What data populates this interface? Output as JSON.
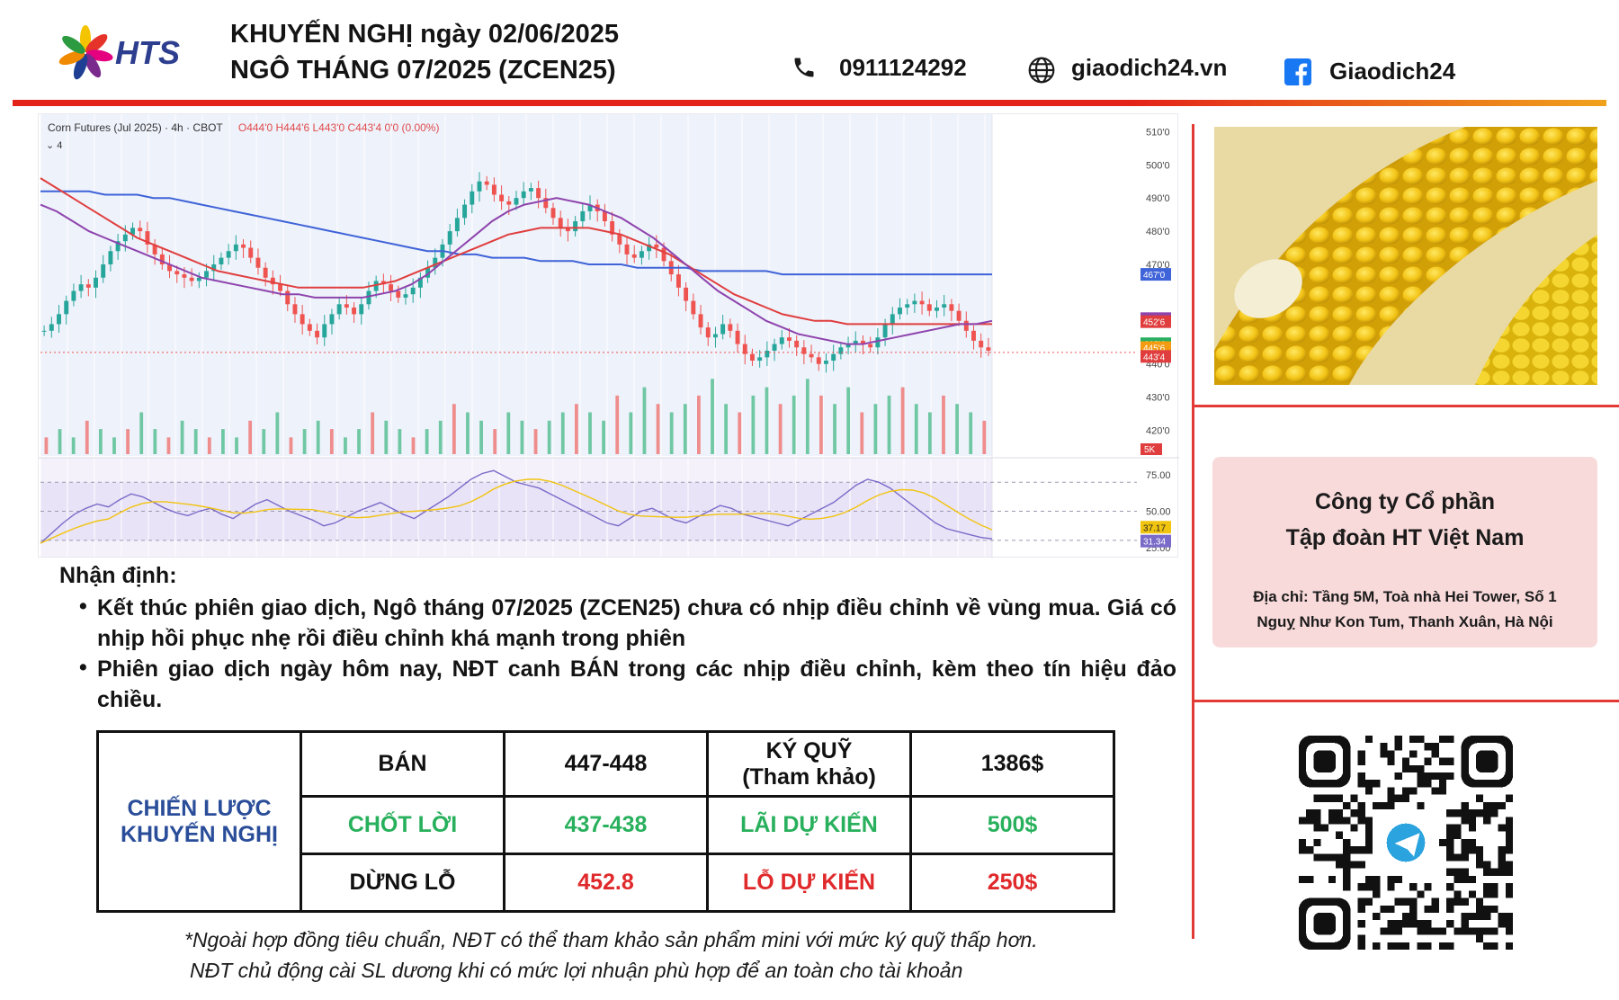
{
  "brand": {
    "name": "HTS"
  },
  "header": {
    "title_line1": "KHUYẾN NGHỊ ngày 02/06/2025",
    "title_line2": "NGÔ THÁNG 07/2025 (ZCEN25)",
    "phone": "0911124292",
    "website": "giaodich24.vn",
    "facebook": "Giaodich24"
  },
  "chart_data": {
    "type": "candlestick",
    "instrument": "Corn Futures (Jul 2025) · 4h · CBOT",
    "ohlc_label": "O444'0 H444'6 L443'0 C443'4 0'0 (0.00%)",
    "indicator_count": "4",
    "price_axis_ticks": [
      "510'0",
      "500'0",
      "490'0",
      "480'0",
      "470'0",
      "440'0",
      "430'0",
      "420'0"
    ],
    "price_labels": [
      {
        "text": "467'0",
        "value": 467.0,
        "color": "#3f63d8"
      },
      {
        "text": "453'2",
        "value": 453.25,
        "color": "#8e44ad"
      },
      {
        "text": "452'6",
        "value": 452.75,
        "color": "#e03e3e"
      },
      {
        "text": "446'4",
        "value": 446.5,
        "color": "#27ae60"
      },
      {
        "text": "445'6",
        "value": 445.75,
        "color": "#f39c12"
      },
      {
        "text": "443'4",
        "value": 443.5,
        "color": "#e03e3e"
      }
    ],
    "volume_label": "5K",
    "rsi_axis_ticks": [
      "75.00",
      "50.00",
      "25.00"
    ],
    "rsi_labels": [
      {
        "text": "37.17",
        "value": 37.17,
        "color": "#f1c40f"
      },
      {
        "text": "31.34",
        "value": 31.34,
        "color": "#7b6bc9"
      }
    ],
    "ylim": [
      415,
      512
    ],
    "rsi_ylim": [
      20,
      85
    ],
    "close_series": [
      450,
      452,
      455,
      459,
      462,
      464,
      463,
      466,
      470,
      474,
      477,
      479,
      481,
      480,
      476,
      473,
      470,
      468,
      467,
      466,
      465,
      466,
      468,
      470,
      472,
      474,
      476,
      475,
      472,
      469,
      466,
      464,
      462,
      458,
      455,
      452,
      450,
      448,
      452,
      455,
      458,
      457,
      455,
      458,
      462,
      465,
      464,
      462,
      460,
      461,
      463,
      466,
      469,
      472,
      476,
      480,
      484,
      488,
      492,
      495,
      494,
      491,
      489,
      488,
      490,
      492,
      493,
      490,
      487,
      484,
      481,
      480,
      483,
      486,
      488,
      486,
      483,
      479,
      476,
      473,
      472,
      474,
      476,
      475,
      471,
      467,
      463,
      459,
      455,
      451,
      448,
      449,
      452,
      450,
      446,
      443,
      441,
      442,
      444,
      446,
      448,
      447,
      445,
      443,
      442,
      440,
      441,
      443,
      445,
      446,
      447,
      446,
      445,
      448,
      452,
      455,
      457,
      458,
      459,
      458,
      456,
      457,
      458,
      456,
      453,
      450,
      447,
      445,
      444
    ],
    "sma_fast": [
      488,
      486,
      483,
      480,
      478,
      476,
      474,
      472,
      470,
      468,
      466,
      465,
      464,
      463,
      462,
      461,
      461,
      460,
      460,
      460,
      460,
      461,
      462,
      464,
      467,
      471,
      475,
      479,
      483,
      486,
      488,
      489,
      490,
      489,
      488,
      486,
      484,
      481,
      478,
      474,
      470,
      466,
      462,
      459,
      456,
      453,
      451,
      449,
      448,
      447,
      446,
      446,
      447,
      448,
      449,
      450,
      451,
      452,
      452,
      453
    ],
    "sma_mid": [
      496,
      493,
      490,
      487,
      484,
      481,
      478,
      476,
      474,
      472,
      470,
      468,
      467,
      466,
      465,
      464,
      463,
      463,
      463,
      463,
      463,
      464,
      465,
      467,
      469,
      471,
      473,
      475,
      477,
      479,
      480,
      481,
      481,
      481,
      481,
      480,
      479,
      477,
      475,
      473,
      470,
      467,
      464,
      461,
      459,
      457,
      455,
      454,
      453,
      453,
      452,
      452,
      452,
      452,
      452,
      452,
      452,
      452,
      452,
      452
    ],
    "sma_slow": [
      492,
      492,
      492,
      492,
      491,
      491,
      491,
      490,
      490,
      489,
      488,
      487,
      486,
      485,
      484,
      483,
      482,
      481,
      480,
      479,
      478,
      477,
      476,
      475,
      474,
      474,
      473,
      473,
      472,
      472,
      472,
      471,
      471,
      471,
      470,
      470,
      470,
      469,
      469,
      469,
      469,
      468,
      468,
      468,
      468,
      468,
      467,
      467,
      467,
      467,
      467,
      467,
      467,
      467,
      467,
      467,
      467,
      467,
      467,
      467
    ],
    "volume": [
      2,
      3,
      2,
      4,
      3,
      2,
      3,
      5,
      3,
      2,
      4,
      3,
      2,
      3,
      2,
      4,
      3,
      5,
      2,
      3,
      4,
      3,
      2,
      3,
      5,
      4,
      3,
      2,
      3,
      4,
      6,
      5,
      4,
      3,
      5,
      4,
      3,
      4,
      5,
      6,
      5,
      4,
      7,
      5,
      8,
      6,
      5,
      6,
      7,
      9,
      6,
      5,
      7,
      8,
      6,
      7,
      9,
      7,
      6,
      8,
      5,
      6,
      7,
      8,
      6,
      5,
      7,
      6,
      5,
      4
    ],
    "rsi": [
      28,
      35,
      42,
      48,
      52,
      55,
      53,
      58,
      62,
      60,
      56,
      52,
      49,
      47,
      50,
      52,
      48,
      45,
      50,
      55,
      58,
      54,
      50,
      47,
      44,
      40,
      42,
      46,
      50,
      53,
      56,
      52,
      48,
      45,
      50,
      55,
      60,
      66,
      72,
      76,
      78,
      74,
      70,
      68,
      66,
      62,
      58,
      54,
      50,
      46,
      42,
      40,
      45,
      50,
      52,
      48,
      44,
      42,
      46,
      50,
      54,
      52,
      48,
      46,
      44,
      42,
      40,
      44,
      48,
      52,
      56,
      62,
      68,
      72,
      70,
      66,
      60,
      54,
      48,
      42,
      38,
      36,
      34,
      32,
      31
    ]
  },
  "analysis": {
    "title": "Nhận định:",
    "bullet1": "Kết thúc phiên giao dịch, Ngô tháng 07/2025 (ZCEN25) chưa có nhịp điều chỉnh về vùng mua. Giá có nhịp hồi phục nhẹ rồi điều chỉnh khá mạnh trong phiên",
    "bullet2": "Phiên giao dịch ngày hôm nay, NĐT canh BÁN trong các nhịp điều chỉnh, kèm theo tín hiệu đảo chiều."
  },
  "strategy": {
    "label_line1": "CHIẾN LƯỢC",
    "label_line2": "KHUYẾN NGHỊ",
    "action": "BÁN",
    "entry": "447-448",
    "margin_line1": "KÝ QUỸ",
    "margin_line2": "(Tham khảo)",
    "margin_value": "1386$",
    "take_profit": "CHỐT LỜI",
    "take_profit_value": "437-438",
    "expected_profit": "LÃI DỰ KIẾN",
    "expected_profit_value": "500$",
    "stop_loss": "DỪNG LỖ",
    "stop_loss_value": "452.8",
    "expected_loss": "LỖ DỰ KIẾN",
    "expected_loss_value": "250$"
  },
  "notes": {
    "line1": "*Ngoài hợp đồng tiêu chuẩn, NĐT có thể tham khảo sản phẩm mini với mức ký quỹ thấp hơn.",
    "line2": "NĐT chủ động cài SL dương khi có mức lợi nhuận phù hợp để an toàn cho tài khoản"
  },
  "company": {
    "name_line1": "Công ty Cổ phần",
    "name_line2": "Tập đoàn HT Việt Nam",
    "address_line1": "Địa chỉ: Tầng 5M, Toà nhà Hei Tower, Số 1",
    "address_line2": "Nguỵ Như Kon Tum, Thanh Xuân, Hà Nội"
  },
  "icons": {
    "phone": "phone-icon",
    "web": "globe-icon",
    "facebook": "facebook-icon",
    "qr": "telegram-qr-code"
  },
  "colors": {
    "accent_red": "#e32219",
    "accent_orange": "#f0a21c",
    "brand_blue": "#2d3e8f",
    "profit_green": "#28b05c",
    "loss_red": "#e0292b",
    "label_blue": "#2a4d9a",
    "card_pink": "#f9dada"
  }
}
